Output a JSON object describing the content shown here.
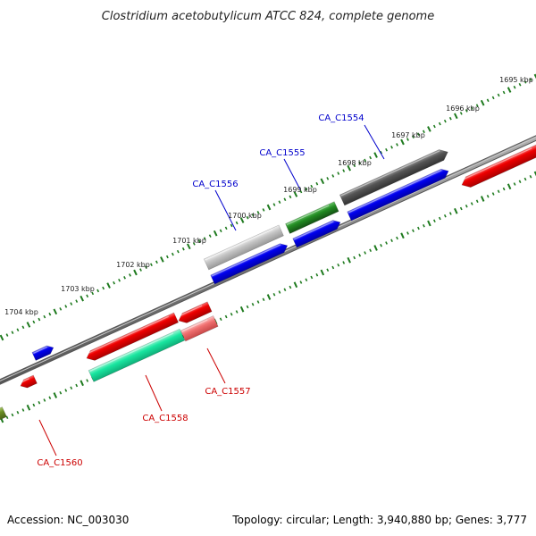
{
  "title": "Clostridium acetobutylicum ATCC 824, complete genome",
  "footer": {
    "accession": "Accession: NC_003030",
    "summary": "Topology: circular; Length: 3,940,880 bp; Genes: 3,777"
  },
  "ticks": [
    "1695 kbp",
    "1696 kbp",
    "1697 kbp",
    "1698 kbp",
    "1699 kbp",
    "1700 kbp",
    "1701 kbp",
    "1702 kbp",
    "1703 kbp",
    "1704 kbp"
  ],
  "gene_labels": {
    "c1554": "CA_C1554",
    "c1555": "CA_C1555",
    "c1556": "CA_C1556",
    "c1557": "CA_C1557",
    "c1558": "CA_C1558",
    "c1560": "CA_C1560"
  },
  "colors": {
    "backbone": "#7a7a7a",
    "tick": "#1e7a1e",
    "forward_label": "#0000cc",
    "reverse_label": "#cc0000",
    "blue_gene": "#0000ee",
    "red_gene": "#ee0000",
    "dark_gray_gene": "#555555",
    "light_gray_gene": "#bdbdbd",
    "green_gene": "#228b22",
    "teal_gene": "#19e6a0",
    "pink_gene": "#f07070",
    "olive_gene": "#6b8e23"
  }
}
